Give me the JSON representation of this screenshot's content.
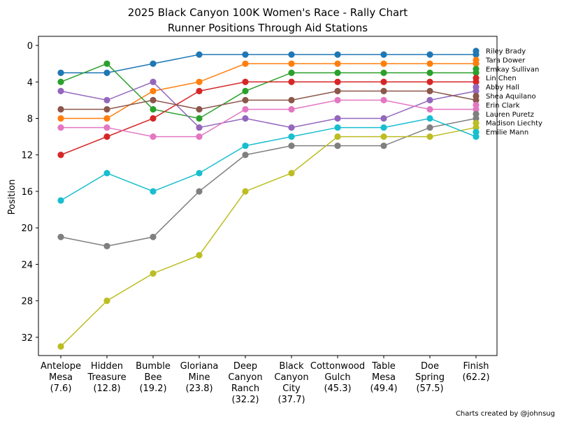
{
  "chart_data": {
    "type": "line",
    "title": "2025 Black Canyon 100K Women's Race - Rally Chart",
    "subtitle": "Runner Positions Through Aid Stations",
    "ylabel": "Position",
    "xlabel": "",
    "ylim": [
      34,
      -1
    ],
    "y_inverted": true,
    "yticks": [
      0,
      4,
      8,
      12,
      16,
      20,
      24,
      28,
      32
    ],
    "grid": false,
    "legend_position": "right",
    "categories": [
      [
        "Antelope",
        "Mesa",
        "(7.6)"
      ],
      [
        "Hidden",
        "Treasure",
        "(12.8)"
      ],
      [
        "Bumble",
        "Bee",
        "(19.2)"
      ],
      [
        "Gloriana",
        "Mine",
        "(23.8)"
      ],
      [
        "Deep",
        "Canyon",
        "Ranch",
        "(32.2)"
      ],
      [
        "Black",
        "Canyon",
        "City",
        "(37.7)"
      ],
      [
        "Cottonwood",
        "Gulch",
        "(45.3)"
      ],
      [
        "Table",
        "Mesa",
        "(49.4)"
      ],
      [
        "Doe",
        "Spring",
        "(57.5)"
      ],
      [
        "Finish",
        "(62.2)"
      ]
    ],
    "series": [
      {
        "name": "Riley Brady",
        "color": "#1f77b4",
        "values": [
          3,
          3,
          2,
          1,
          1,
          1,
          1,
          1,
          1,
          1
        ]
      },
      {
        "name": "Tara Dower",
        "color": "#ff7f0e",
        "values": [
          8,
          8,
          5,
          4,
          2,
          2,
          2,
          2,
          2,
          2
        ]
      },
      {
        "name": "Emkay Sullivan",
        "color": "#2ca02c",
        "values": [
          4,
          2,
          7,
          8,
          5,
          3,
          3,
          3,
          3,
          3
        ]
      },
      {
        "name": "Lin Chen",
        "color": "#d62728",
        "values": [
          12,
          10,
          8,
          5,
          4,
          4,
          4,
          4,
          4,
          4
        ]
      },
      {
        "name": "Abby Hall",
        "color": "#9467bd",
        "values": [
          5,
          6,
          4,
          9,
          8,
          9,
          8,
          8,
          6,
          5
        ]
      },
      {
        "name": "Shea Aquilano",
        "color": "#8c564b",
        "values": [
          7,
          7,
          6,
          7,
          6,
          6,
          5,
          5,
          5,
          6
        ]
      },
      {
        "name": "Erin  Clark",
        "color": "#e377c2",
        "values": [
          9,
          9,
          10,
          10,
          7,
          7,
          6,
          6,
          7,
          7
        ]
      },
      {
        "name": "Lauren Puretz",
        "color": "#7f7f7f",
        "values": [
          21,
          22,
          21,
          16,
          12,
          11,
          11,
          11,
          9,
          8
        ]
      },
      {
        "name": "Madison Liechty",
        "color": "#bcbd22",
        "values": [
          33,
          28,
          25,
          23,
          16,
          14,
          10,
          10,
          10,
          9
        ]
      },
      {
        "name": "Emilie Mann",
        "color": "#17becf",
        "values": [
          17,
          14,
          16,
          14,
          11,
          10,
          9,
          9,
          8,
          10
        ]
      }
    ],
    "credit": "Charts created by @johnsug"
  }
}
